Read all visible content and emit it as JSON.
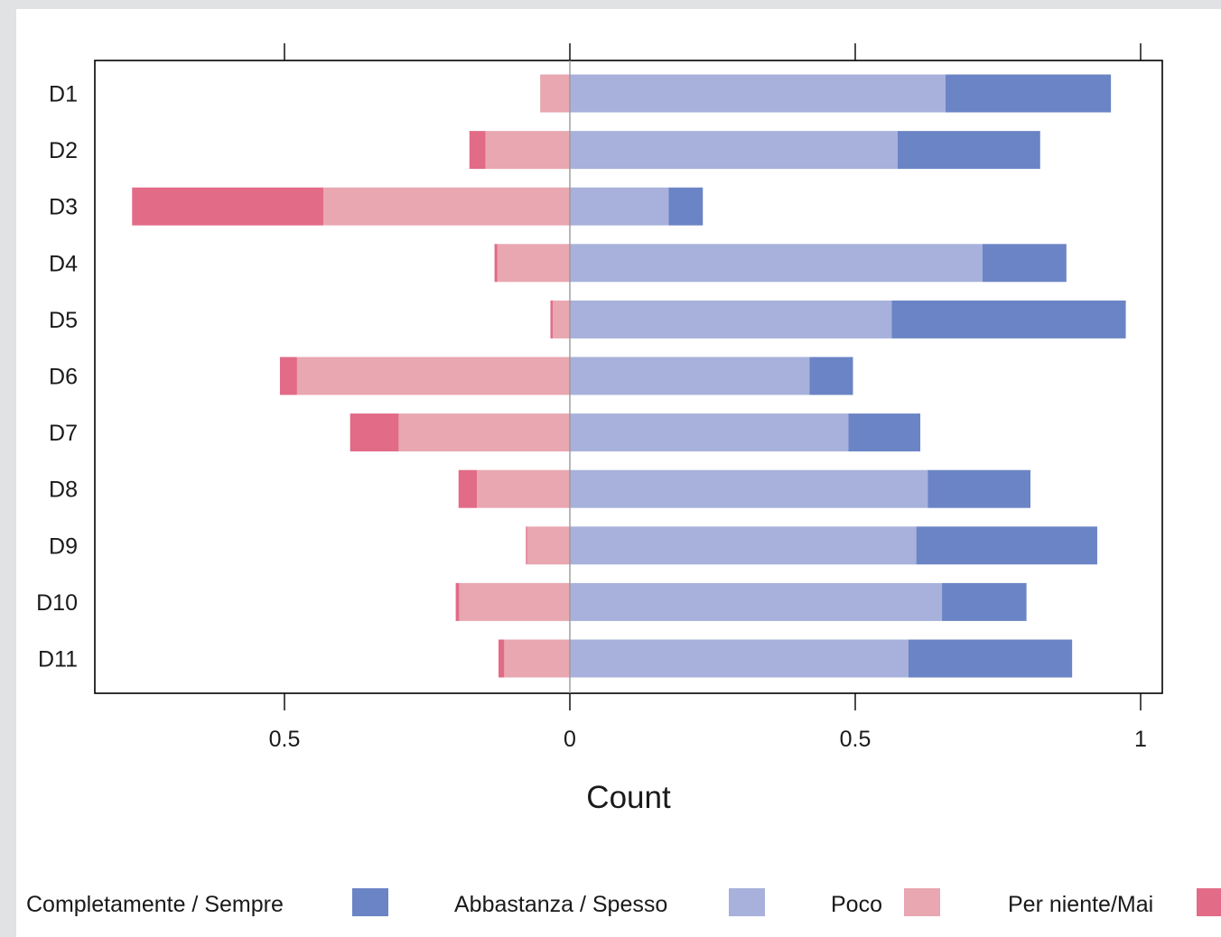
{
  "chart_data": {
    "type": "bar",
    "orientation": "horizontal",
    "stacked": "diverging",
    "xlabel": "Count",
    "xlim": [
      -0.77,
      1.04
    ],
    "xticks": [
      -0.5,
      0,
      0.5,
      1
    ],
    "xtick_labels": [
      "0.5",
      "0",
      "0.5",
      "1"
    ],
    "categories": [
      "D1",
      "D2",
      "D3",
      "D4",
      "D5",
      "D6",
      "D7",
      "D8",
      "D9",
      "D10",
      "D11"
    ],
    "series": [
      {
        "name": "Completamente / Sempre",
        "side": "positive",
        "color": "#6b84c5",
        "values": [
          0.29,
          0.25,
          0.06,
          0.147,
          0.41,
          0.076,
          0.126,
          0.18,
          0.317,
          0.148,
          0.287
        ]
      },
      {
        "name": "Abbastanza / Spesso",
        "side": "positive",
        "color": "#a7b1db",
        "values": [
          0.658,
          0.574,
          0.173,
          0.723,
          0.564,
          0.42,
          0.488,
          0.627,
          0.607,
          0.652,
          0.593
        ]
      },
      {
        "name": "Poco",
        "side": "negative",
        "color": "#e8a7b1",
        "values": [
          0.052,
          0.148,
          0.432,
          0.127,
          0.03,
          0.478,
          0.3,
          0.163,
          0.075,
          0.194,
          0.115
        ]
      },
      {
        "name": "Per niente/Mai",
        "side": "negative",
        "color": "#e26b87",
        "values": [
          0,
          0.028,
          0.335,
          0.005,
          0.004,
          0.03,
          0.085,
          0.032,
          0.002,
          0.006,
          0.01
        ]
      }
    ],
    "legend_position": "bottom"
  }
}
